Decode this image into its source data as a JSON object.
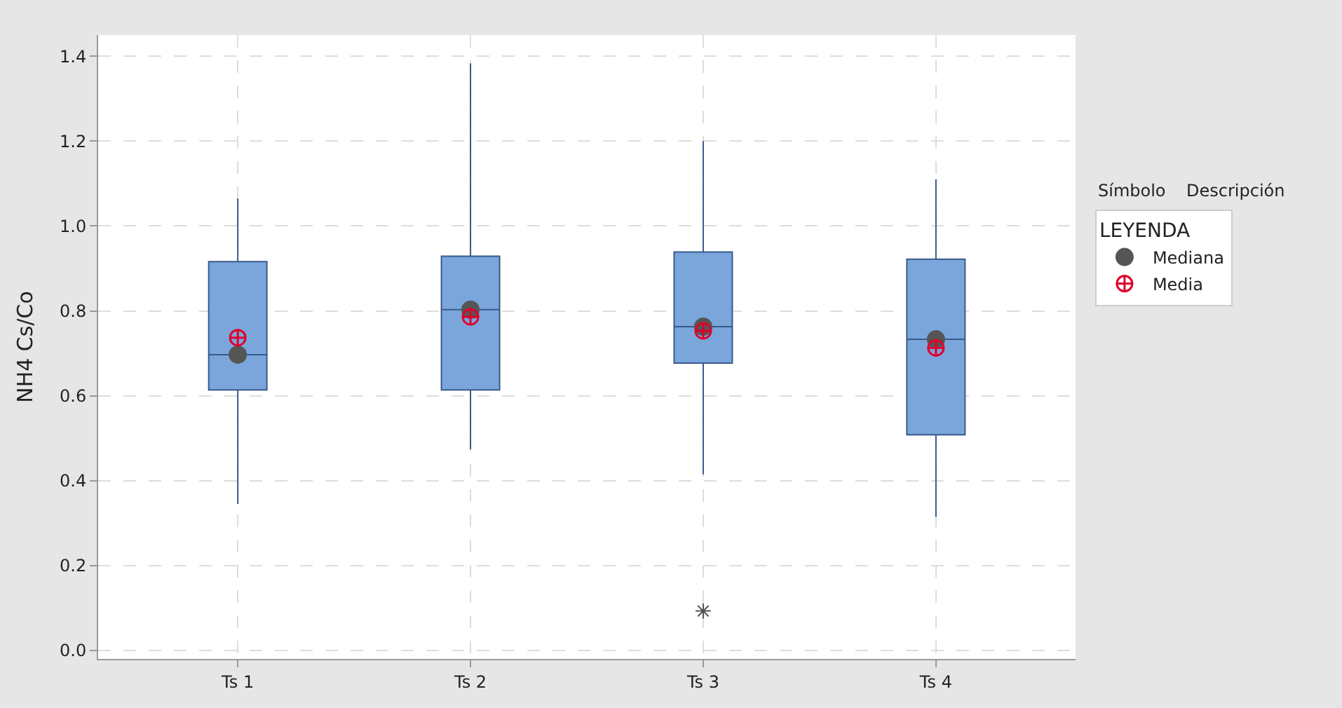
{
  "chart_data": {
    "type": "box",
    "ylabel": "NH4 Cs/Co",
    "categories": [
      "Ts 1",
      "Ts 2",
      "Ts 3",
      "Ts 4"
    ],
    "color": "#7aa6dc",
    "boxes": [
      {
        "low": 0.345,
        "q1": 0.614,
        "median": 0.697,
        "q3": 0.916,
        "high": 1.065
      },
      {
        "low": 0.474,
        "q1": 0.614,
        "median": 0.803,
        "q3": 0.929,
        "high": 1.383
      },
      {
        "low": 0.415,
        "q1": 0.677,
        "median": 0.763,
        "q3": 0.939,
        "high": 1.2,
        "outliers": [
          0.093
        ]
      },
      {
        "low": 0.315,
        "q1": 0.508,
        "median": 0.733,
        "q3": 0.922,
        "high": 1.11
      }
    ],
    "series": [
      {
        "name": "Mediana",
        "type": "scatter",
        "marker": "circle",
        "color": "#555555",
        "values": [
          0.697,
          0.803,
          0.763,
          0.733
        ]
      },
      {
        "name": "Media",
        "type": "scatter",
        "marker": "cross",
        "color": "#e0002a",
        "values": [
          0.737,
          0.786,
          0.753,
          0.713
        ]
      }
    ],
    "ylim": [
      -0.02,
      1.45
    ],
    "yticks": [
      {
        "value": 0,
        "label": "0.0"
      },
      0.2,
      0.4,
      0.6,
      0.8,
      {
        "value": 1,
        "label": "1.0"
      },
      1.2,
      1.4
    ],
    "grid": true,
    "legend": "right",
    "legend_title": "LEYENDA",
    "annotations": [
      "Símbolo",
      "Descripción"
    ]
  }
}
